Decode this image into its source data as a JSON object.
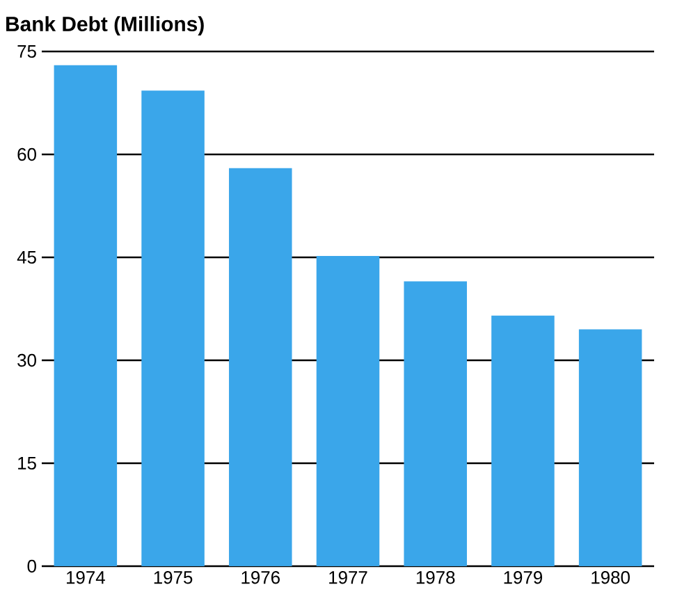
{
  "chart_data": {
    "type": "bar",
    "title": "Bank Debt (Millions)",
    "categories": [
      "1974",
      "1975",
      "1976",
      "1977",
      "1978",
      "1979",
      "1980"
    ],
    "values": [
      73,
      69.3,
      58,
      45.2,
      41.5,
      36.5,
      34.5
    ],
    "color": "#3aa6ea",
    "ylim": [
      0,
      75
    ],
    "yticks": [
      0,
      15,
      30,
      45,
      60,
      75
    ],
    "grid": "y"
  }
}
